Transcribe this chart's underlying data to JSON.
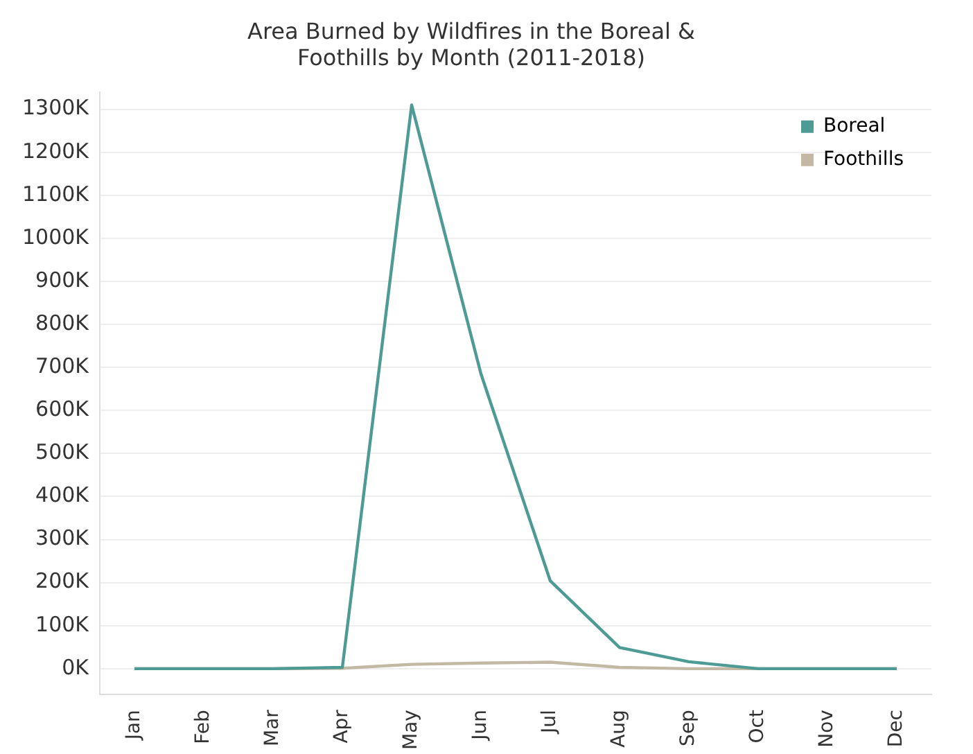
{
  "chart_data": {
    "type": "line",
    "title": [
      "Area Burned by Wildfires in the Boreal &",
      "Foothills by Month (2011-2018)"
    ],
    "categories": [
      "Jan",
      "Feb",
      "Mar",
      "Apr",
      "May",
      "Jun",
      "Jul",
      "Aug",
      "Sep",
      "Oct",
      "Nov",
      "Dec"
    ],
    "series": [
      {
        "name": "Boreal",
        "color": "#4e9a94",
        "values": [
          0,
          0,
          0,
          3000,
          1310000,
          685000,
          204000,
          49000,
          16000,
          0,
          0,
          0
        ]
      },
      {
        "name": "Foothills",
        "color": "#c2b8a3",
        "values": [
          0,
          0,
          0,
          1000,
          10000,
          13000,
          15000,
          3000,
          0,
          0,
          0,
          0
        ]
      }
    ],
    "ylim": [
      -60000,
      1340000
    ],
    "yticks": [
      {
        "value": 0,
        "label": "0K"
      },
      {
        "value": 100000,
        "label": "100K"
      },
      {
        "value": 200000,
        "label": "200K"
      },
      {
        "value": 300000,
        "label": "300K"
      },
      {
        "value": 400000,
        "label": "400K"
      },
      {
        "value": 500000,
        "label": "500K"
      },
      {
        "value": 600000,
        "label": "600K"
      },
      {
        "value": 700000,
        "label": "700K"
      },
      {
        "value": 800000,
        "label": "800K"
      },
      {
        "value": 900000,
        "label": "900K"
      },
      {
        "value": 1000000,
        "label": "1000K"
      },
      {
        "value": 1100000,
        "label": "1100K"
      },
      {
        "value": 1200000,
        "label": "1200K"
      },
      {
        "value": 1300000,
        "label": "1300K"
      }
    ],
    "grid": "y",
    "legend": "top right",
    "marker": "none",
    "line_style": "solid"
  }
}
